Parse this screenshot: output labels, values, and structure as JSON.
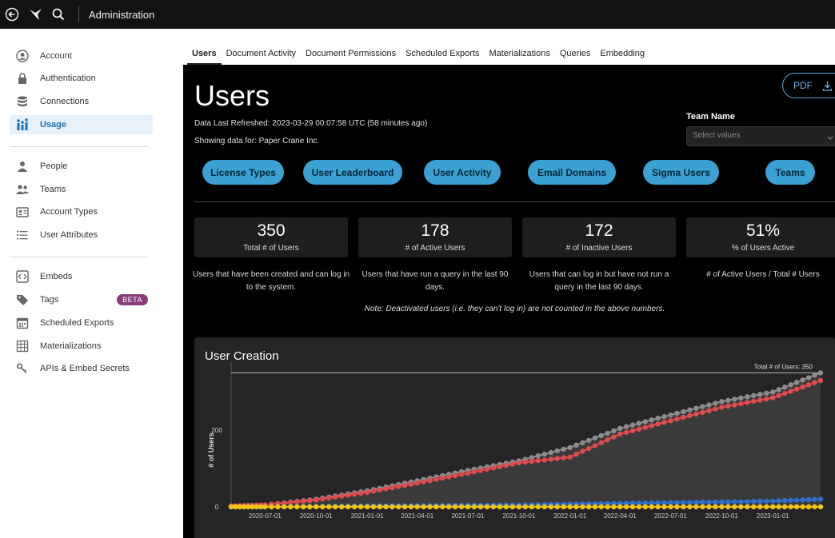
{
  "topbar": {
    "title": "Administration",
    "icons": [
      "back-arrow-icon",
      "sigma-logo-icon",
      "search-icon"
    ]
  },
  "sidebar": {
    "group1": [
      {
        "label": "Account",
        "icon": "account-circle-icon"
      },
      {
        "label": "Authentication",
        "icon": "lock-icon"
      },
      {
        "label": "Connections",
        "icon": "database-icon"
      },
      {
        "label": "Usage",
        "icon": "usage-icon",
        "active": true
      }
    ],
    "group2": [
      {
        "label": "People",
        "icon": "person-icon"
      },
      {
        "label": "Teams",
        "icon": "team-icon"
      },
      {
        "label": "Account Types",
        "icon": "id-card-icon"
      },
      {
        "label": "User Attributes",
        "icon": "list-icon"
      }
    ],
    "group3": [
      {
        "label": "Embeds",
        "icon": "code-icon"
      },
      {
        "label": "Tags",
        "icon": "tag-icon",
        "badge": "BETA"
      },
      {
        "label": "Scheduled Exports",
        "icon": "calendar-icon"
      },
      {
        "label": "Materializations",
        "icon": "table-grid-icon"
      },
      {
        "label": "APIs & Embed Secrets",
        "icon": "key-icon"
      }
    ]
  },
  "tabs": [
    "Users",
    "Document Activity",
    "Document Permissions",
    "Scheduled Exports",
    "Materializations",
    "Queries",
    "Embedding"
  ],
  "page": {
    "title": "Users",
    "refreshed": "Data Last Refreshed: 2023-03-29 00:07:58 UTC (58 minutes ago)",
    "showing": "Showing data for: Paper Crane Inc.",
    "pdf_label": "PDF",
    "team_filter": {
      "label": "Team Name",
      "placeholder": "Select values"
    },
    "pills": [
      "License Types",
      "User Leaderboard",
      "User Activity",
      "Email Domains",
      "Sigma Users",
      "Teams"
    ],
    "kpis": [
      {
        "value": "350",
        "caption": "Total # of Users",
        "desc": "Users that have been created and can log in to the system."
      },
      {
        "value": "178",
        "caption": "# of Active Users",
        "desc": "Users that have run a query in the last 90 days."
      },
      {
        "value": "172",
        "caption": "# of Inactive Users",
        "desc": "Users that can log in but have not run a query in the last 90 days."
      },
      {
        "value": "51%",
        "caption": "% of Users Active",
        "desc": "# of Active Users / Total #  Users"
      }
    ],
    "note": "Note: Deactivated users (i.e. they can't log in) are not counted in the above numbers."
  },
  "chart_data": {
    "type": "line",
    "title": "User Creation",
    "ylabel": "# of Users",
    "xlabel": "",
    "ylim": [
      0,
      380
    ],
    "y_ticks": [
      0,
      200
    ],
    "x_ticks": [
      "2020-07-01",
      "2020-10-01",
      "2021-01-01",
      "2021-04-01",
      "2021-07-01",
      "2021-10-01",
      "2022-01-01",
      "2022-04-01",
      "2022-07-01",
      "2022-10-01",
      "2023-01-01"
    ],
    "reference_line": {
      "label": "Total # of Users: 350",
      "value": 350
    },
    "series": [
      {
        "color": "#8c8c8c",
        "x": [
          "2020-05-01",
          "2020-07-01",
          "2020-10-01",
          "2021-01-01",
          "2021-04-01",
          "2021-07-01",
          "2021-10-01",
          "2022-01-01",
          "2022-04-01",
          "2022-07-01",
          "2022-10-01",
          "2023-01-01",
          "2023-03-28"
        ],
        "values": [
          2,
          5,
          20,
          42,
          68,
          95,
          120,
          155,
          205,
          240,
          275,
          300,
          350
        ]
      },
      {
        "color": "#e04b4b",
        "x": [
          "2020-05-01",
          "2020-07-01",
          "2020-10-01",
          "2021-01-01",
          "2021-04-01",
          "2021-07-01",
          "2021-10-01",
          "2022-01-01",
          "2022-04-01",
          "2022-07-01",
          "2022-10-01",
          "2023-01-01",
          "2023-03-28"
        ],
        "values": [
          2,
          5,
          18,
          38,
          62,
          88,
          115,
          130,
          190,
          225,
          260,
          285,
          330
        ]
      },
      {
        "color": "#2f6fd0",
        "x": [
          "2020-05-01",
          "2020-07-01",
          "2020-10-01",
          "2021-01-01",
          "2021-04-01",
          "2021-07-01",
          "2021-10-01",
          "2022-01-01",
          "2022-04-01",
          "2022-07-01",
          "2022-10-01",
          "2023-01-01",
          "2023-03-28"
        ],
        "values": [
          0,
          0,
          1,
          2,
          3,
          4,
          5,
          7,
          9,
          11,
          13,
          15,
          20
        ]
      },
      {
        "color": "#f0c419",
        "x": [
          "2020-05-01",
          "2020-07-01",
          "2020-10-01",
          "2021-01-01",
          "2021-04-01",
          "2021-07-01",
          "2021-10-01",
          "2022-01-01",
          "2022-04-01",
          "2022-07-01",
          "2022-10-01",
          "2023-01-01",
          "2023-03-28"
        ],
        "values": [
          0,
          0,
          0,
          0,
          0,
          0,
          0,
          0,
          0,
          0,
          0,
          0,
          0
        ]
      }
    ]
  }
}
